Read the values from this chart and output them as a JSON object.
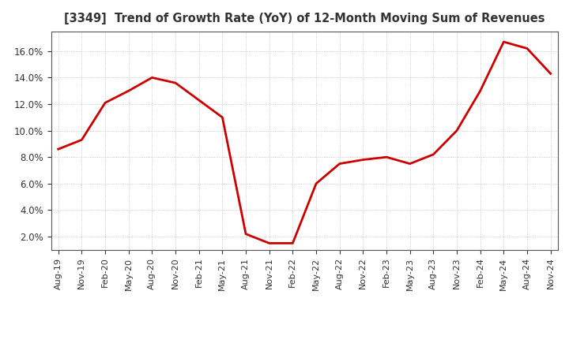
{
  "title": "[3349]  Trend of Growth Rate (YoY) of 12-Month Moving Sum of Revenues",
  "line_color": "#CC0000",
  "background_color": "#FFFFFF",
  "grid_color": "#BBBBBB",
  "ylim": [
    0.01,
    0.175
  ],
  "yticks": [
    0.02,
    0.04,
    0.06,
    0.08,
    0.1,
    0.12,
    0.14,
    0.16
  ],
  "x_labels": [
    "Aug-19",
    "Nov-19",
    "Feb-20",
    "May-20",
    "Aug-20",
    "Nov-20",
    "Feb-21",
    "May-21",
    "Aug-21",
    "Nov-21",
    "Feb-22",
    "May-22",
    "Aug-22",
    "Nov-22",
    "Feb-23",
    "May-23",
    "Aug-23",
    "Nov-23",
    "Feb-24",
    "May-24",
    "Aug-24",
    "Nov-24"
  ],
  "y_values": [
    0.086,
    0.093,
    0.121,
    0.13,
    0.14,
    0.136,
    0.123,
    0.11,
    0.022,
    0.015,
    0.015,
    0.06,
    0.075,
    0.078,
    0.08,
    0.075,
    0.082,
    0.1,
    0.13,
    0.167,
    0.162,
    0.143
  ]
}
